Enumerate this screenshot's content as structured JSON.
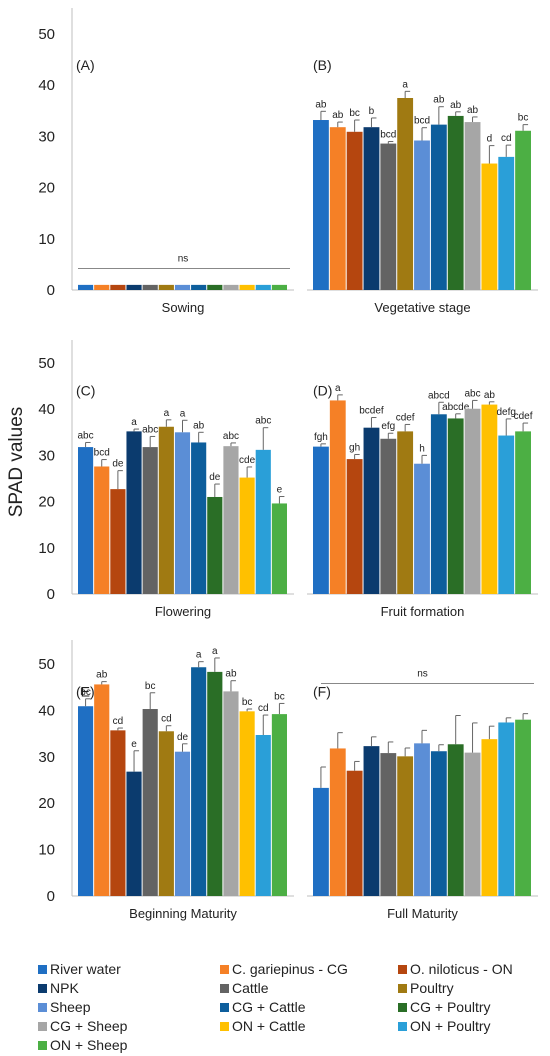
{
  "chart_data": {
    "type": "bar",
    "ylabel": "SPAD values",
    "series": [
      {
        "name": "River water",
        "color": "#1f6fc3"
      },
      {
        "name": "C. gariepinus - CG",
        "color": "#f58026"
      },
      {
        "name": "O. niloticus - ON",
        "color": "#b5460f"
      },
      {
        "name": "NPK",
        "color": "#0b3b6e"
      },
      {
        "name": "Cattle",
        "color": "#636363"
      },
      {
        "name": "Poultry",
        "color": "#a07a12"
      },
      {
        "name": "Sheep",
        "color": "#5b8ed6"
      },
      {
        "name": "CG + Cattle",
        "color": "#0d5e9c"
      },
      {
        "name": "CG + Poultry",
        "color": "#2a6e26"
      },
      {
        "name": "CG + Sheep",
        "color": "#a6a6a6"
      },
      {
        "name": "ON + Cattle",
        "color": "#ffc000"
      },
      {
        "name": "ON + Poultry",
        "color": "#2a9fd8"
      },
      {
        "name": "ON + Sheep",
        "color": "#4caf44"
      }
    ],
    "panels": [
      {
        "label": "(A)",
        "stage": "Sowing",
        "ylim": [
          0,
          50
        ],
        "yticks": [
          0,
          10,
          20,
          30,
          40,
          50
        ],
        "values": [
          1,
          1,
          1,
          1,
          1,
          1,
          1,
          1,
          1,
          1,
          1,
          1,
          1
        ],
        "errors": [
          0,
          0,
          0,
          0,
          0,
          0,
          0,
          0,
          0,
          0,
          0,
          0,
          0
        ],
        "letters": [
          "",
          "",
          "",
          "",
          "",
          "",
          "",
          "",
          "",
          "",
          "",
          "",
          ""
        ],
        "ns": "ns",
        "ns_y": 4.2
      },
      {
        "label": "(B)",
        "stage": "Vegetative stage",
        "ylim": [
          0,
          50
        ],
        "yticks": [
          0,
          10,
          20,
          30,
          40,
          50
        ],
        "values": [
          33.2,
          31.8,
          30.9,
          31.8,
          28.6,
          37.5,
          29.2,
          32.3,
          34.0,
          32.8,
          24.7,
          26.0,
          31.1
        ],
        "errors": [
          1.7,
          1.0,
          2.3,
          1.8,
          0.4,
          1.3,
          2.5,
          3.5,
          0.8,
          1.0,
          3.5,
          2.3,
          1.2
        ],
        "letters": [
          "ab",
          "ab",
          "bc",
          "b",
          "bcd",
          "a",
          "bcd",
          "ab",
          "ab",
          "ab",
          "d",
          "cd",
          "bc"
        ],
        "ns": "",
        "ns_y": 0
      },
      {
        "label": "(C)",
        "stage": "Flowering",
        "ylim": [
          0,
          50
        ],
        "yticks": [
          0,
          10,
          20,
          30,
          40,
          50
        ],
        "values": [
          31.8,
          27.6,
          22.7,
          35.2,
          31.8,
          36.2,
          35.0,
          32.8,
          21.0,
          32.0,
          25.2,
          31.2,
          19.6
        ],
        "errors": [
          1.0,
          1.5,
          4.0,
          0.5,
          2.3,
          1.5,
          2.6,
          2.2,
          2.8,
          0.7,
          2.3,
          4.8,
          1.5
        ],
        "letters": [
          "abc",
          "bcd",
          "de",
          "a",
          "abc",
          "a",
          "a",
          "ab",
          "de",
          "abc",
          "cde",
          "abc",
          "e"
        ],
        "ns": "",
        "ns_y": 0
      },
      {
        "label": "(D)",
        "stage": "Fruit formation",
        "ylim": [
          0,
          50
        ],
        "yticks": [
          0,
          10,
          20,
          30,
          40,
          50
        ],
        "values": [
          31.9,
          41.9,
          29.2,
          36.0,
          33.6,
          35.2,
          28.2,
          38.9,
          38.0,
          40.1,
          41.0,
          34.3,
          35.2
        ],
        "errors": [
          0.6,
          1.2,
          1.0,
          2.2,
          1.2,
          1.5,
          1.8,
          2.6,
          1.0,
          1.8,
          0.6,
          3.6,
          1.8
        ],
        "letters": [
          "fgh",
          "a",
          "gh",
          "bcdef",
          "efg",
          "cdef",
          "h",
          "abcd",
          "abcde",
          "abc",
          "ab",
          "defg",
          "cdef"
        ],
        "ns": "",
        "ns_y": 0
      },
      {
        "label": "(E)",
        "stage": "Beginning Maturity",
        "ylim": [
          0,
          50
        ],
        "yticks": [
          0,
          10,
          20,
          30,
          40,
          50
        ],
        "values": [
          40.9,
          45.6,
          35.7,
          26.8,
          40.3,
          35.5,
          31.1,
          49.3,
          48.3,
          44.1,
          39.8,
          34.7,
          39.2
        ],
        "errors": [
          1.6,
          0.6,
          0.5,
          4.5,
          3.5,
          1.2,
          1.7,
          1.2,
          3.0,
          2.3,
          0.5,
          4.3,
          2.3
        ],
        "letters": [
          "bc",
          "ab",
          "cd",
          "e",
          "bc",
          "cd",
          "de",
          "a",
          "a",
          "ab",
          "bc",
          "cd",
          "bc"
        ],
        "ns": "",
        "ns_y": 0
      },
      {
        "label": "(F)",
        "stage": "Full Maturity",
        "ylim": [
          0,
          50
        ],
        "yticks": [
          0,
          10,
          20,
          30,
          40,
          50
        ],
        "values": [
          23.3,
          31.8,
          27.0,
          32.3,
          30.8,
          30.1,
          32.9,
          31.2,
          32.7,
          30.9,
          33.8,
          37.4,
          38.0
        ],
        "errors": [
          4.5,
          3.4,
          2.0,
          2.0,
          2.4,
          1.8,
          2.8,
          1.4,
          6.2,
          6.4,
          2.8,
          1.0,
          1.3
        ],
        "letters": [
          "",
          "",
          "",
          "",
          "",
          "",
          "",
          "",
          "",
          "",
          "",
          "",
          ""
        ],
        "ns": "ns",
        "ns_y": 45.8
      }
    ]
  }
}
